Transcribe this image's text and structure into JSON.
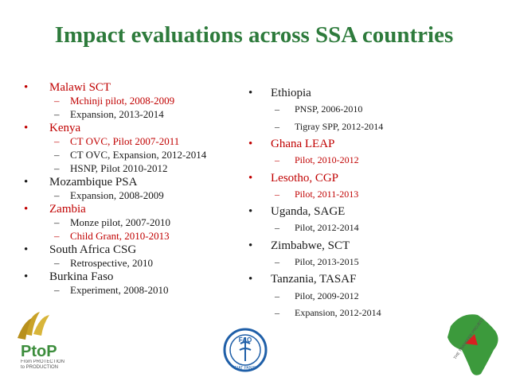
{
  "header": {
    "title": "Impact evaluations across SSA countries"
  },
  "columns": [
    {
      "items": [
        {
          "text": "Malawi SCT",
          "color": "#c00000",
          "subitems": [
            {
              "text": "Mchinji pilot, 2008-2009",
              "color": "#c00000"
            },
            {
              "text": "Expansion, 2013-2014",
              "color": "#1a1a1a"
            }
          ]
        },
        {
          "text": "Kenya",
          "color": "#c00000",
          "subitems": [
            {
              "text": "CT OVC, Pilot 2007-2011",
              "color": "#c00000"
            },
            {
              "text": "CT OVC, Expansion, 2012-2014",
              "color": "#1a1a1a"
            },
            {
              "text": "HSNP, Pilot 2010-2012",
              "color": "#1a1a1a"
            }
          ]
        },
        {
          "text": "Mozambique PSA",
          "color": "#1a1a1a",
          "subitems": [
            {
              "text": "Expansion, 2008-2009",
              "color": "#1a1a1a"
            }
          ]
        },
        {
          "text": "Zambia",
          "color": "#c00000",
          "subitems": [
            {
              "text": "Monze pilot, 2007-2010",
              "color": "#1a1a1a"
            },
            {
              "text": "Child Grant, 2010-2013",
              "color": "#c00000"
            }
          ]
        },
        {
          "text": "South Africa CSG",
          "color": "#1a1a1a",
          "subitems": [
            {
              "text": "Retrospective, 2010",
              "color": "#1a1a1a"
            }
          ]
        },
        {
          "text": "Burkina Faso",
          "color": "#1a1a1a",
          "subitems": [
            {
              "text": "Experiment, 2008-2010",
              "color": "#1a1a1a"
            }
          ]
        }
      ]
    },
    {
      "items": [
        {
          "text": "Ethiopia",
          "color": "#1a1a1a",
          "subitems": [
            {
              "text": "PNSP, 2006-2010",
              "color": "#1a1a1a"
            },
            {
              "text": "Tigray SPP, 2012-2014",
              "color": "#1a1a1a"
            }
          ]
        },
        {
          "text": "Ghana LEAP",
          "color": "#c00000",
          "subitems": [
            {
              "text": "Pilot, 2010-2012",
              "color": "#c00000"
            }
          ]
        },
        {
          "text": "Lesotho, CGP",
          "color": "#c00000",
          "subitems": [
            {
              "text": "Pilot, 2011-2013",
              "color": "#c00000"
            }
          ]
        },
        {
          "text": "Uganda, SAGE",
          "color": "#1a1a1a",
          "subitems": [
            {
              "text": "Pilot, 2012-2014",
              "color": "#1a1a1a"
            }
          ]
        },
        {
          "text": "Zimbabwe, SCT",
          "color": "#1a1a1a",
          "subitems": [
            {
              "text": "Pilot, 2013-2015",
              "color": "#1a1a1a"
            }
          ]
        },
        {
          "text": "Tanzania, TASAF",
          "color": "#1a1a1a",
          "subitems": [
            {
              "text": "Pilot, 2009-2012",
              "color": "#1a1a1a"
            },
            {
              "text": "Expansion, 2012-2014",
              "color": "#1a1a1a"
            }
          ]
        }
      ]
    }
  ],
  "logos": {
    "ptop": "PtoP",
    "ptop_tagline": "From PROTECTION to PRODUCTION",
    "fao": "FAO",
    "fao_motto": "FIAT PANIS",
    "transfer": "THE TRANSFER PROJECT"
  }
}
